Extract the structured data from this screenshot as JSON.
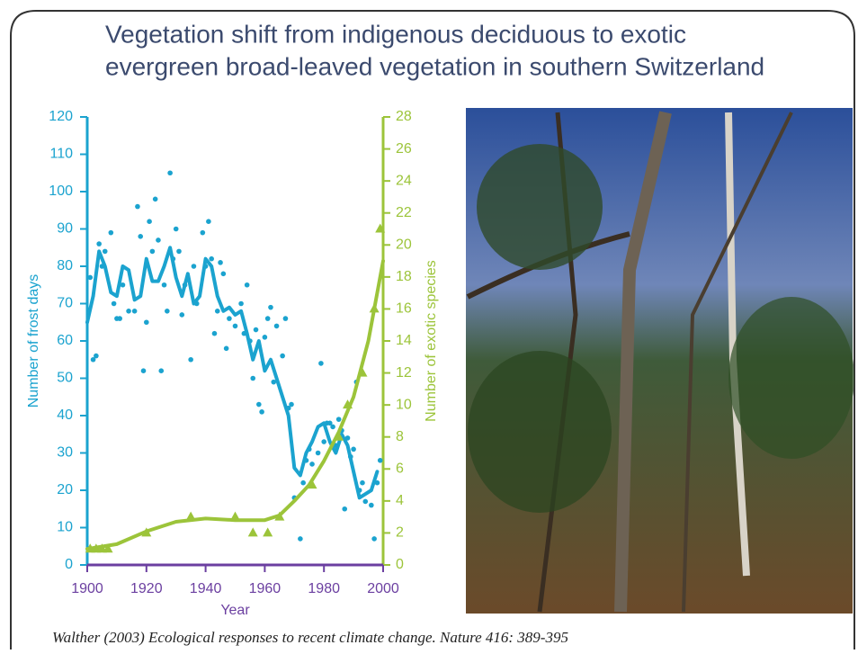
{
  "slide": {
    "title_lines": [
      "Vegetation shift from indigenous deciduous to exotic",
      "evergreen broad-leaved vegetation in southern Switzerland"
    ],
    "citation": "Walther (2003) Ecological responses to recent climate change. Nature 416: 389-395"
  },
  "chart_data": {
    "type": "line",
    "x_label": "Year",
    "y_label": "Number of frost days",
    "y2_label": "Number of exotic species",
    "xlim": [
      1900,
      2000
    ],
    "xticks": [
      1900,
      1920,
      1940,
      1960,
      1980,
      2000
    ],
    "ylim": [
      0,
      120
    ],
    "yticks": [
      0,
      10,
      20,
      30,
      40,
      50,
      60,
      70,
      80,
      90,
      100,
      110,
      120
    ],
    "y2lim": [
      0,
      28
    ],
    "y2ticks": [
      0,
      2,
      4,
      6,
      8,
      10,
      12,
      14,
      16,
      18,
      20,
      22,
      24,
      26,
      28
    ],
    "y_color": "#1ba3cf",
    "y2_color": "#9cc43a",
    "x_axis_color": "#6b3fa0",
    "series": [
      {
        "color": "#1ba3cf",
        "marker": "circle",
        "x": [
          1901,
          1902,
          1903,
          1904,
          1905,
          1906,
          1908,
          1909,
          1910,
          1911,
          1912,
          1914,
          1916,
          1917,
          1918,
          1919,
          1920,
          1921,
          1922,
          1923,
          1924,
          1925,
          1926,
          1927,
          1928,
          1929,
          1930,
          1931,
          1932,
          1933,
          1935,
          1936,
          1937,
          1939,
          1940,
          1941,
          1942,
          1943,
          1944,
          1945,
          1946,
          1947,
          1948,
          1950,
          1952,
          1953,
          1954,
          1955,
          1956,
          1957,
          1958,
          1959,
          1960,
          1961,
          1962,
          1963,
          1964,
          1966,
          1967,
          1968,
          1969,
          1970,
          1972,
          1973,
          1974,
          1975,
          1976,
          1978,
          1979,
          1980,
          1981,
          1982,
          1983,
          1984,
          1985,
          1986,
          1987,
          1988,
          1989,
          1990,
          1991,
          1992,
          1993,
          1994,
          1996,
          1997,
          1998,
          1999
        ],
        "values": [
          77,
          55,
          56,
          86,
          80,
          84,
          89,
          70,
          66,
          66,
          75,
          68,
          68,
          96,
          88,
          52,
          65,
          92,
          84,
          98,
          87,
          52,
          75,
          68,
          105,
          82,
          90,
          84,
          67,
          75,
          55,
          80,
          70,
          89,
          80,
          92,
          82,
          62,
          68,
          81,
          78,
          58,
          66,
          64,
          70,
          62,
          75,
          60,
          50,
          63,
          43,
          41,
          61,
          66,
          69,
          49,
          64,
          56,
          66,
          42,
          43,
          18,
          7,
          22,
          28,
          31,
          27,
          30,
          54,
          33,
          38,
          38,
          37,
          32,
          39,
          36,
          15,
          34,
          29,
          31,
          49,
          20,
          22,
          17,
          16,
          7,
          22,
          28
        ]
      },
      {
        "color": "#1ba3cf",
        "marker": "none",
        "x": [
          1900,
          1902,
          1904,
          1906,
          1908,
          1910,
          1912,
          1914,
          1916,
          1918,
          1920,
          1922,
          1924,
          1926,
          1928,
          1930,
          1932,
          1934,
          1936,
          1938,
          1940,
          1942,
          1944,
          1946,
          1948,
          1950,
          1952,
          1954,
          1956,
          1958,
          1960,
          1962,
          1964,
          1966,
          1968,
          1970,
          1972,
          1974,
          1976,
          1978,
          1980,
          1982,
          1984,
          1986,
          1988,
          1990,
          1992,
          1994,
          1996,
          1998
        ],
        "values": [
          65,
          72,
          84,
          80,
          73,
          72,
          80,
          79,
          71,
          72,
          82,
          76,
          76,
          80,
          85,
          77,
          72,
          78,
          70,
          72,
          82,
          80,
          72,
          68,
          69,
          67,
          68,
          62,
          55,
          60,
          52,
          55,
          50,
          45,
          40,
          26,
          24,
          30,
          33,
          37,
          38,
          33,
          30,
          35,
          32,
          25,
          18,
          19,
          20,
          25
        ]
      },
      {
        "color": "#9cc43a",
        "marker": "triangle",
        "axis": "y2",
        "x": [
          1901,
          1903,
          1905,
          1907,
          1920,
          1935,
          1950,
          1956,
          1961,
          1965,
          1976,
          1985,
          1988,
          1993,
          1997,
          1999
        ],
        "values": [
          1,
          1,
          1,
          1,
          2,
          3,
          3,
          2,
          2,
          3,
          5,
          8,
          10,
          12,
          16,
          21
        ]
      },
      {
        "color": "#9cc43a",
        "marker": "none",
        "axis": "y2",
        "x": [
          1900,
          1910,
          1920,
          1930,
          1940,
          1950,
          1960,
          1965,
          1970,
          1975,
          1980,
          1985,
          1990,
          1995,
          2000
        ],
        "values": [
          1,
          1.3,
          2.1,
          2.7,
          2.9,
          2.8,
          2.8,
          3.1,
          4,
          5,
          6.5,
          8.3,
          10.5,
          14,
          19
        ]
      }
    ]
  }
}
